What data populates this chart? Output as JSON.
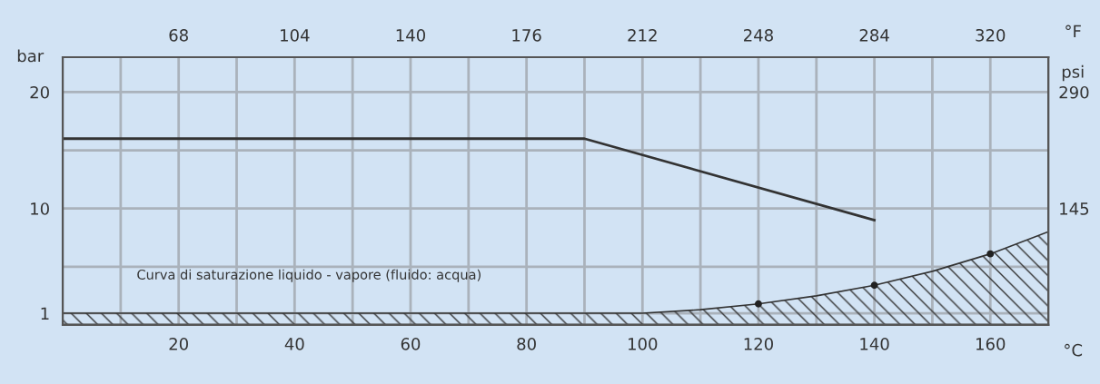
{
  "chart_data": {
    "type": "line",
    "xlabel": "°C",
    "ylabel": "bar",
    "y2label": "psi",
    "x2label": "°F",
    "annotations": [
      "Curva di saturazione liquido - vapore (fluido: acqua)"
    ],
    "xlim": [
      0,
      170
    ],
    "xticks": [
      {
        "value": 10,
        "label": null
      },
      20,
      {
        "value": 30,
        "label": null
      },
      40,
      {
        "value": 50,
        "label": null
      },
      60,
      {
        "value": 70,
        "label": null
      },
      80,
      {
        "value": 90,
        "label": null
      },
      100,
      {
        "value": 110,
        "label": null
      },
      120,
      {
        "value": 130,
        "label": null
      },
      140,
      {
        "value": 150,
        "label": null
      },
      160
    ],
    "ylim": [
      0,
      23
    ],
    "yticks": [
      1,
      {
        "value": 5,
        "label": null
      },
      10,
      {
        "value": 15,
        "label": null
      },
      20
    ],
    "y2lim": [
      0,
      333.5
    ],
    "y2ticks": [
      145,
      290
    ],
    "x2lim": [
      32,
      338
    ],
    "x2ticks": [
      68,
      104,
      140,
      176,
      212,
      248,
      284,
      320
    ],
    "grid": true,
    "series": [
      {
        "type": "line",
        "color": "#333333",
        "x": [
          0,
          90,
          140
        ],
        "values": [
          16,
          16,
          9
        ]
      },
      {
        "type": "area",
        "color": "#333333",
        "x": [
          0,
          100,
          110,
          120,
          130,
          140,
          150,
          160,
          170
        ],
        "values": [
          1,
          1,
          1.3,
          1.8,
          2.5,
          3.4,
          4.6,
          6.1,
          8.0
        ]
      },
      {
        "type": "scatter",
        "color": "#222222",
        "marker": "circle",
        "x": [
          120,
          140,
          160
        ],
        "values": [
          1.8,
          3.4,
          6.1
        ]
      }
    ]
  }
}
